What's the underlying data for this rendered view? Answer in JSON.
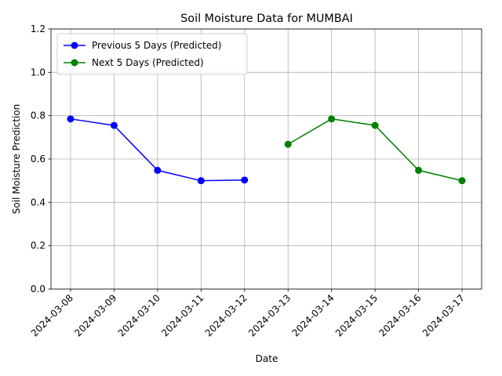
{
  "chart_data": {
    "type": "line",
    "title": "Soil Moisture Data for MUMBAI",
    "x_label": "Date",
    "y_label": "Soil Moisture Prediction",
    "x": [
      "2024-03-08",
      "2024-03-09",
      "2024-03-10",
      "2024-03-11",
      "2024-03-12",
      "2024-03-13",
      "2024-03-14",
      "2024-03-15",
      "2024-03-16",
      "2024-03-17"
    ],
    "series": [
      {
        "name": "Previous 5 Days (Predicted)",
        "color": "#0000ff",
        "values": [
          0.785,
          0.755,
          0.548,
          0.5,
          0.503,
          null,
          null,
          null,
          null,
          null
        ]
      },
      {
        "name": "Next 5 Days (Predicted)",
        "color": "#008000",
        "values": [
          null,
          null,
          null,
          null,
          null,
          0.668,
          0.785,
          0.755,
          0.548,
          0.5
        ]
      }
    ],
    "ylim": [
      0,
      1.2
    ],
    "yticks": [
      {
        "value": 0,
        "label": "0.0"
      },
      0.2,
      0.4,
      0.6,
      0.8,
      {
        "value": 1,
        "label": "1.0"
      },
      1.2
    ],
    "grid": true,
    "legend": "upper left"
  }
}
